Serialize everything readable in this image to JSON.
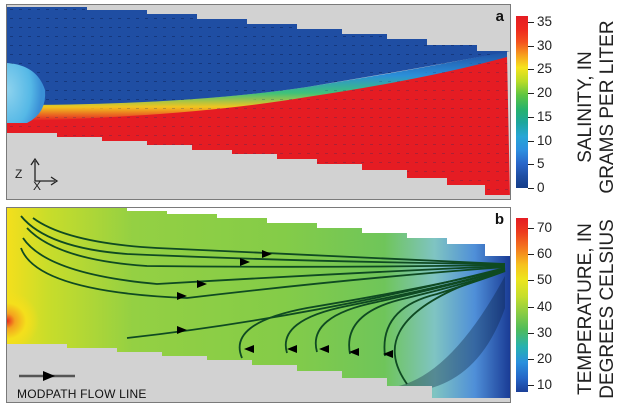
{
  "panels": [
    {
      "letter": "a",
      "colorbar": {
        "label_line1": "SALINITY, IN",
        "label_line2": "GRAMS PER LITER",
        "ticks": [
          "35",
          "30",
          "25",
          "20",
          "15",
          "10",
          "5",
          "0"
        ]
      },
      "axis": {
        "z": "Z",
        "x": "X"
      }
    },
    {
      "letter": "b",
      "colorbar": {
        "label_line1": "TEMPERATURE, IN",
        "label_line2": "DEGREES CELSIUS",
        "ticks": [
          "70",
          "60",
          "50",
          "40",
          "30",
          "20",
          "10"
        ]
      },
      "legend": "MODPATH FLOW LINE"
    }
  ],
  "colors": {
    "salt_high": "#e51c23",
    "fresh": "#1f4ea3",
    "hot": "#f4df1c",
    "warm": "#8ccf45",
    "cold": "#1a3c96",
    "flow_line": "#0f4a22",
    "inactive": "#d2d2d2"
  }
}
